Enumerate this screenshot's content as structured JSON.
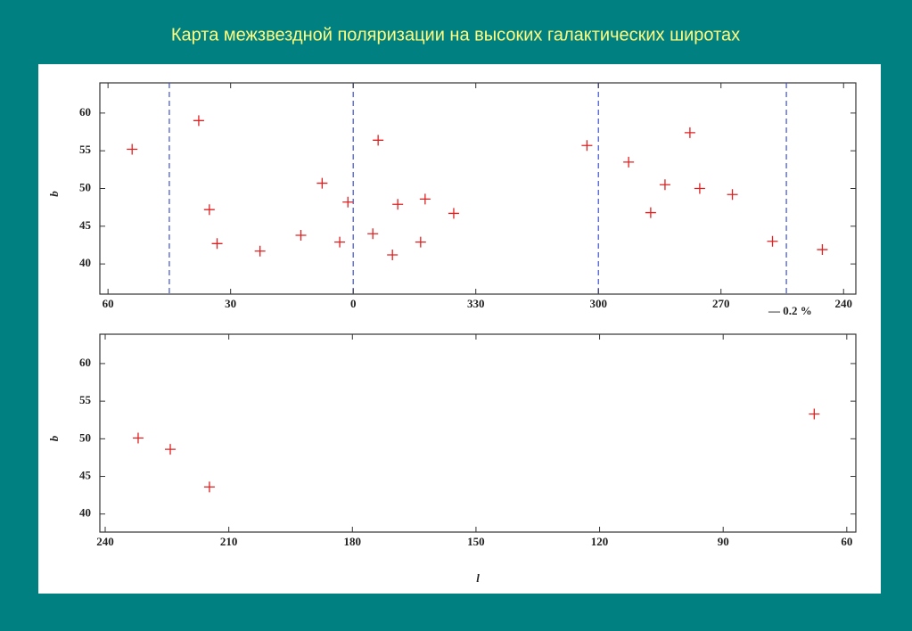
{
  "title": "Карта межзвездной поляризации на высоких галактических широтах",
  "chart_data": [
    {
      "type": "scatter",
      "y_label": "b",
      "scale_label": "— 0.2 %",
      "xlim": [
        62,
        -123
      ],
      "ylim": [
        36,
        64
      ],
      "xticks": [
        60,
        30,
        0,
        {
          "value": -30,
          "label": "330"
        },
        {
          "value": -60,
          "label": "300"
        },
        {
          "value": -90,
          "label": "270"
        },
        {
          "value": -120,
          "label": "240"
        }
      ],
      "yticks": [
        40,
        45,
        50,
        55,
        60
      ],
      "reference_lines": {
        "x": [
          45,
          0,
          -60,
          -106
        ],
        "color": "#3a4fd8"
      },
      "series": [
        {
          "color": "#e02020",
          "x": [
            54.1,
            37.8,
            35.2,
            33.3,
            22.8,
            12.8,
            7.6,
            3.3,
            1.3,
            -4.8,
            -6.1,
            -9.6,
            -10.9,
            -16.5,
            -17.6,
            -24.6,
            -57.2,
            -67.4,
            -72.8,
            -76.3,
            -82.4,
            -84.8,
            -92.8,
            -102.6,
            -114.8
          ],
          "values": [
            55.2,
            59,
            47.2,
            42.7,
            41.7,
            43.8,
            50.7,
            42.9,
            48.2,
            44.0,
            56.4,
            41.2,
            47.9,
            42.9,
            48.6,
            46.7,
            55.7,
            53.5,
            46.8,
            50.5,
            57.4,
            50.0,
            49.2,
            43.0,
            41.9
          ]
        }
      ]
    },
    {
      "type": "scatter",
      "y_label": "b",
      "x_label": "l",
      "xlim": [
        241.3,
        57.8
      ],
      "ylim": [
        37.6,
        63.9
      ],
      "xticks": [
        240,
        210,
        180,
        150,
        120,
        90,
        60
      ],
      "yticks": [
        40,
        45,
        50,
        55,
        60
      ],
      "series": [
        {
          "color": "#e02020",
          "x": [
            232,
            224.2,
            214.7,
            67.9
          ],
          "values": [
            50.1,
            48.6,
            43.6,
            53.3
          ]
        }
      ]
    }
  ]
}
